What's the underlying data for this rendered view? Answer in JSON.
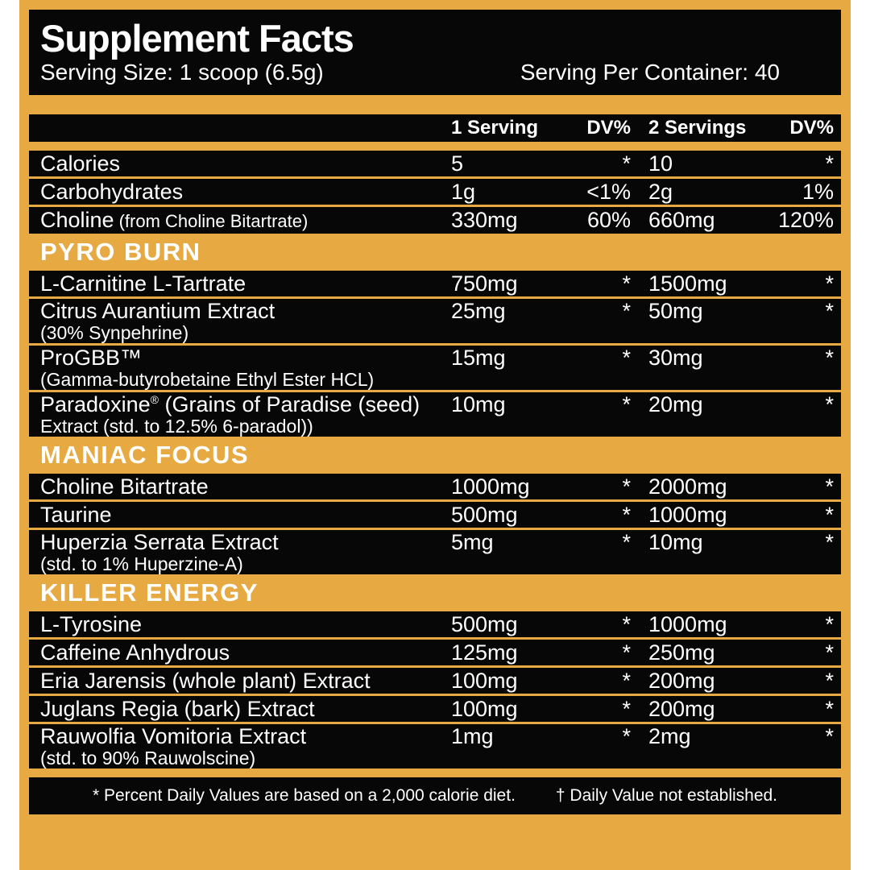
{
  "colors": {
    "page_background": "#FFFFFF",
    "panel_gold": "#E7A942",
    "block_black": "#070707",
    "text_white": "#FFFFFF"
  },
  "header": {
    "title": "Supplement Facts",
    "serving_size": "Serving Size: 1 scoop (6.5g)",
    "servings_per_container": "Serving Per Container: 40"
  },
  "columns": [
    "1 Serving",
    "DV%",
    "2 Servings",
    "DV%"
  ],
  "sections": [
    {
      "title": null,
      "rows": [
        {
          "name": "Calories",
          "v1": "5",
          "dv1": "*",
          "v2": "10",
          "dv2": "*"
        },
        {
          "name": "Carbohydrates",
          "v1": "1g",
          "dv1": "<1%",
          "v2": "2g",
          "dv2": "1%"
        },
        {
          "name": "Choline",
          "note": "(from Choline Bitartrate)",
          "v1": "330mg",
          "dv1": "60%",
          "v2": "660mg",
          "dv2": "120%"
        }
      ]
    },
    {
      "title": "PYRO BURN",
      "rows": [
        {
          "name": "L-Carnitine L-Tartrate",
          "v1": "750mg",
          "dv1": "*",
          "v2": "1500mg",
          "dv2": "*"
        },
        {
          "name": "Citrus Aurantium Extract",
          "sub": "(30% Synpehrine)",
          "v1": "25mg",
          "dv1": "*",
          "v2": "50mg",
          "dv2": "*"
        },
        {
          "name": "ProGBB™",
          "sub": "(Gamma-butyrobetaine Ethyl Ester HCL)",
          "v1": "15mg",
          "dv1": "*",
          "v2": "30mg",
          "dv2": "*"
        },
        {
          "name": "Paradoxine® (Grains of Paradise (seed)",
          "sub": "Extract (std. to 12.5% 6-paradol))",
          "v1": "10mg",
          "dv1": "*",
          "v2": "20mg",
          "dv2": "*"
        }
      ]
    },
    {
      "title": "MANIAC FOCUS",
      "rows": [
        {
          "name": "Choline Bitartrate",
          "v1": "1000mg",
          "dv1": "*",
          "v2": "2000mg",
          "dv2": "*"
        },
        {
          "name": "Taurine",
          "v1": "500mg",
          "dv1": "*",
          "v2": "1000mg",
          "dv2": "*"
        },
        {
          "name": "Huperzia Serrata Extract",
          "sub": "(std. to 1% Huperzine-A)",
          "v1": "5mg",
          "dv1": "*",
          "v2": "10mg",
          "dv2": "*"
        }
      ]
    },
    {
      "title": "KILLER ENERGY",
      "rows": [
        {
          "name": "L-Tyrosine",
          "v1": "500mg",
          "dv1": "*",
          "v2": "1000mg",
          "dv2": "*"
        },
        {
          "name": "Caffeine Anhydrous",
          "v1": "125mg",
          "dv1": "*",
          "v2": "250mg",
          "dv2": "*"
        },
        {
          "name": "Eria Jarensis (whole plant) Extract",
          "v1": "100mg",
          "dv1": "*",
          "v2": "200mg",
          "dv2": "*"
        },
        {
          "name": "Juglans Regia (bark) Extract",
          "v1": "100mg",
          "dv1": "*",
          "v2": "200mg",
          "dv2": "*"
        },
        {
          "name": "Rauwolfia Vomitoria Extract",
          "sub": "(std. to 90% Rauwolscine)",
          "v1": "1mg",
          "dv1": "*",
          "v2": "2mg",
          "dv2": "*"
        }
      ]
    }
  ],
  "footnotes": {
    "daily_value": "* Percent Daily Values are based on a 2,000 calorie diet.",
    "not_established": "† Daily Value not established."
  }
}
